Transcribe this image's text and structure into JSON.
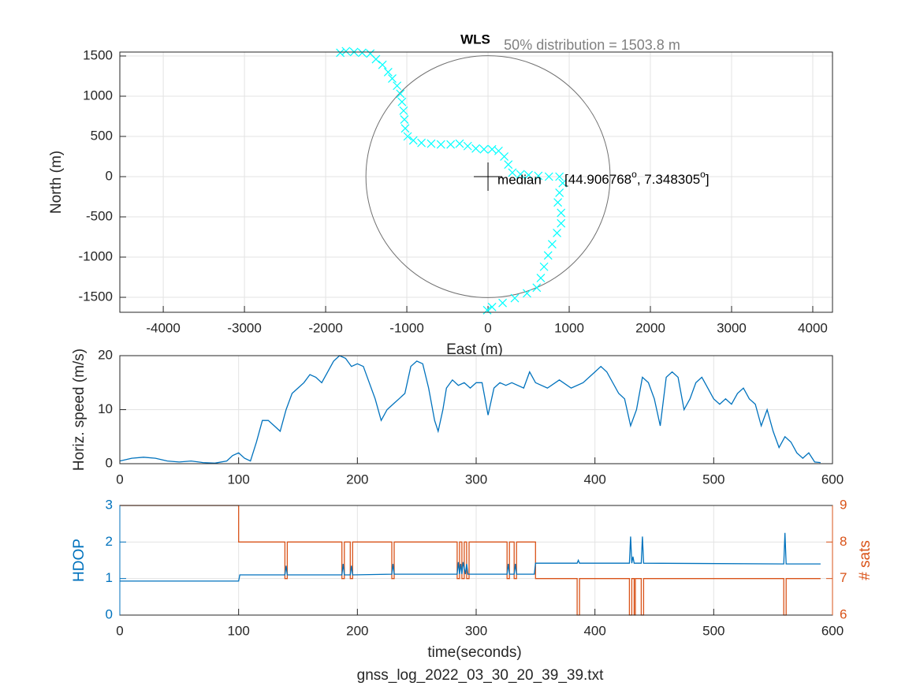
{
  "chart_data": [
    {
      "type": "scatter",
      "title": "WLS",
      "xlabel": "East (m)",
      "ylabel": "North (m)",
      "annotation": "50% distribution = 1503.8 m",
      "circle_radius": 1503.8,
      "median_label": "median",
      "median_coords": [
        "[44.906768",
        "o",
        ", 7.348305",
        "o",
        "]"
      ],
      "xlim": [
        -4535,
        4243
      ],
      "ylim": [
        -1686,
        1549
      ],
      "xticks": [
        -4000,
        -3000,
        -2000,
        -1000,
        0,
        1000,
        2000,
        3000,
        4000
      ],
      "yticks": [
        -1500,
        -1000,
        -500,
        0,
        500,
        1000,
        1500
      ],
      "grid": true,
      "series": [
        {
          "color": "#00FFFF",
          "marker": "x",
          "x": [
            -1820,
            -1750,
            -1650,
            -1550,
            -1450,
            -1380,
            -1300,
            -1230,
            -1180,
            -1120,
            -1080,
            -1060,
            -1040,
            -1030,
            -1020,
            -990,
            -920,
            -820,
            -700,
            -580,
            -460,
            -350,
            -250,
            -150,
            -50,
            50,
            130,
            200,
            250,
            300,
            400,
            500,
            620,
            750,
            880,
            920,
            880,
            860,
            900,
            900,
            850,
            790,
            740,
            690,
            650,
            600,
            480,
            330,
            180,
            50,
            -10
          ],
          "values": [
            1540,
            1560,
            1550,
            1540,
            1530,
            1460,
            1390,
            1300,
            1220,
            1130,
            1030,
            930,
            820,
            710,
            600,
            500,
            450,
            420,
            410,
            400,
            400,
            410,
            380,
            350,
            340,
            340,
            320,
            250,
            150,
            50,
            30,
            20,
            10,
            0,
            0,
            -80,
            -200,
            -320,
            -450,
            -580,
            -700,
            -840,
            -980,
            -1120,
            -1260,
            -1380,
            -1450,
            -1510,
            -1570,
            -1620,
            -1660
          ]
        }
      ]
    },
    {
      "type": "line",
      "ylabel": "Horiz. speed (m/s)",
      "xlim": [
        0,
        600
      ],
      "ylim": [
        0,
        20
      ],
      "xticks": [
        0,
        100,
        200,
        300,
        400,
        500,
        600
      ],
      "yticks": [
        0,
        10,
        20
      ],
      "grid": true,
      "x": [
        0,
        10,
        20,
        30,
        40,
        50,
        60,
        70,
        80,
        90,
        95,
        100,
        105,
        110,
        115,
        120,
        125,
        130,
        135,
        140,
        145,
        150,
        155,
        160,
        165,
        170,
        175,
        180,
        185,
        190,
        195,
        200,
        205,
        210,
        215,
        220,
        225,
        230,
        235,
        240,
        245,
        250,
        255,
        260,
        265,
        268,
        272,
        275,
        280,
        285,
        290,
        295,
        300,
        305,
        310,
        315,
        320,
        325,
        330,
        340,
        345,
        350,
        360,
        370,
        380,
        390,
        400,
        405,
        410,
        420,
        425,
        430,
        435,
        440,
        445,
        450,
        455,
        460,
        465,
        470,
        475,
        480,
        485,
        490,
        495,
        500,
        505,
        510,
        515,
        520,
        525,
        530,
        535,
        540,
        545,
        550,
        555,
        560,
        565,
        570,
        575,
        580,
        585,
        590
      ],
      "series": [
        {
          "color": "#0072BD",
          "values": [
            0.5,
            1,
            1.2,
            1,
            0.5,
            0.3,
            0.5,
            0.2,
            0.1,
            0.5,
            1.5,
            2,
            1,
            0.5,
            4,
            8,
            8,
            7,
            6,
            10,
            13,
            14,
            15,
            16.5,
            16,
            15,
            17,
            19,
            20,
            19.5,
            18,
            18.5,
            18,
            15,
            12,
            8,
            10,
            11,
            12,
            13,
            18,
            19,
            18.5,
            14,
            8,
            6,
            10,
            14,
            15.5,
            14.5,
            15,
            14,
            15,
            15,
            9,
            14,
            15,
            14.5,
            15,
            14,
            17,
            15,
            14,
            15.5,
            14,
            15,
            17,
            18,
            17,
            13,
            12,
            7,
            10,
            16,
            15,
            12,
            7,
            16,
            17,
            16,
            10,
            12,
            15,
            16,
            14,
            12,
            11,
            12,
            11,
            13,
            14,
            12,
            11,
            7,
            10,
            6,
            3,
            5,
            4,
            2,
            1,
            2,
            0.3,
            0.2
          ]
        }
      ]
    },
    {
      "type": "line",
      "xlabel": "time(seconds)",
      "ylabel": "HDOP",
      "y2label": "# sats",
      "footer": "gnss_log_2022_03_30_20_39_39.txt",
      "ycolor": "#0072BD",
      "y2color": "#D95319",
      "xlim": [
        0,
        600
      ],
      "ylim": [
        0,
        3
      ],
      "y2lim": [
        6,
        9
      ],
      "xticks": [
        0,
        100,
        200,
        300,
        400,
        500,
        600
      ],
      "yticks": [
        0,
        1,
        2,
        3
      ],
      "y2ticks": [
        6,
        7,
        8,
        9
      ],
      "grid": true,
      "series": [
        {
          "color": "#D95319",
          "axis": "y2",
          "x": [
            0,
            100,
            100,
            139,
            139,
            141,
            141,
            187,
            187,
            189,
            189,
            194,
            194,
            196,
            196,
            229,
            229,
            231,
            231,
            284,
            284,
            286,
            286,
            288,
            288,
            290,
            290,
            292,
            292,
            294,
            294,
            326,
            326,
            328,
            328,
            332,
            332,
            334,
            334,
            350,
            350,
            385,
            385,
            387,
            387,
            429,
            429,
            431,
            431,
            433,
            433,
            434,
            434,
            439,
            439,
            441,
            441,
            559,
            559,
            561,
            561,
            590
          ],
          "values": [
            9,
            9,
            8,
            8,
            7,
            7,
            8,
            8,
            7,
            7,
            8,
            8,
            7,
            7,
            8,
            8,
            7,
            7,
            8,
            8,
            7,
            7,
            8,
            8,
            7,
            7,
            8,
            8,
            7,
            7,
            8,
            8,
            7,
            7,
            8,
            8,
            7,
            7,
            8,
            8,
            7,
            7,
            6,
            6,
            7,
            7,
            6,
            6,
            7,
            7,
            6,
            6,
            7,
            7,
            6,
            6,
            7,
            7,
            6,
            6,
            7,
            7
          ]
        },
        {
          "color": "#0072BD",
          "x": [
            0,
            100,
            101,
            139,
            140,
            141,
            187,
            188,
            189,
            194,
            195,
            196,
            229,
            230,
            231,
            284,
            285,
            286,
            287,
            288,
            289,
            291,
            292,
            293,
            326,
            327,
            328,
            332,
            333,
            334,
            349,
            350,
            385,
            386,
            387,
            429,
            430,
            431,
            432,
            433,
            439,
            440,
            441,
            559,
            560,
            561,
            590
          ],
          "values": [
            0.93,
            0.93,
            1.1,
            1.1,
            1.35,
            1.1,
            1.1,
            1.4,
            1.1,
            1.1,
            1.35,
            1.1,
            1.12,
            1.4,
            1.12,
            1.12,
            1.45,
            1.12,
            1.4,
            1.12,
            1.45,
            1.12,
            1.4,
            1.12,
            1.12,
            1.4,
            1.12,
            1.12,
            1.4,
            1.12,
            1.12,
            1.42,
            1.42,
            1.5,
            1.42,
            1.42,
            2.15,
            1.42,
            1.6,
            1.42,
            1.42,
            2.15,
            1.42,
            1.4,
            2.25,
            1.4,
            1.4
          ]
        }
      ]
    }
  ]
}
